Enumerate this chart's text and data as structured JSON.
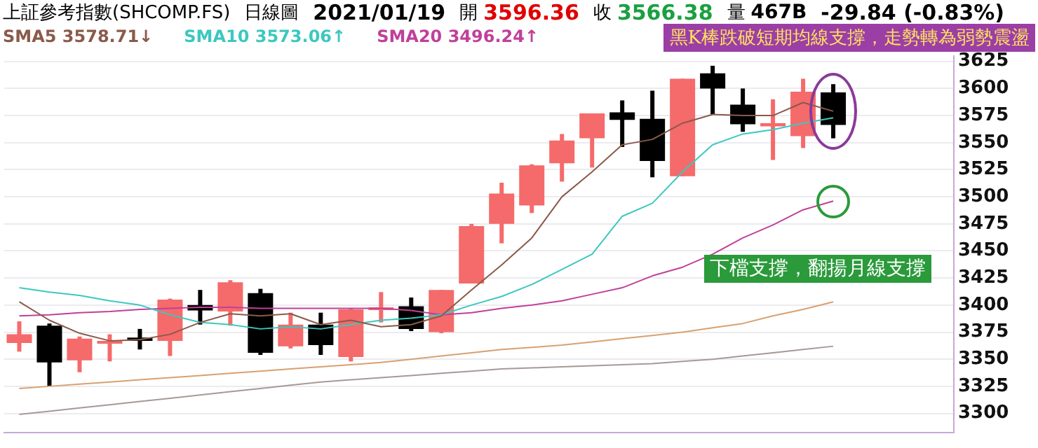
{
  "chart_data": {
    "type": "candlestick",
    "title": "上証參考指數(SHCOMP.FS)",
    "annotations": [
      "日線圖",
      "2021/01/19",
      "開",
      "3596.36",
      "收",
      "3566.38",
      "量",
      "467B",
      "-29.84 (-0.83%)",
      "黑K棒跌破短期均線支撐，走勢轉為弱勢震盪",
      "下檔支撐，翻揚月線支撐"
    ],
    "categories": [
      null,
      null,
      null,
      null,
      null,
      null,
      null,
      null,
      null,
      null,
      null,
      null,
      null,
      null,
      null,
      null,
      null,
      null,
      null,
      null,
      null,
      null,
      null,
      null,
      null,
      null,
      null,
      null
    ],
    "ohlc": [
      [
        3365,
        3385,
        3357,
        3373
      ],
      [
        3381,
        3383,
        3325,
        3347
      ],
      [
        3349,
        3371,
        3338,
        3369
      ],
      [
        3366,
        3373,
        3348,
        3367
      ],
      [
        3370,
        3378,
        3359,
        3367
      ],
      [
        3367,
        3406,
        3353,
        3405
      ],
      [
        3400,
        3414,
        3382,
        3395
      ],
      [
        3394,
        3423,
        3381,
        3421
      ],
      [
        3411,
        3415,
        3354,
        3356
      ],
      [
        3362,
        3393,
        3360,
        3382
      ],
      [
        3382,
        3393,
        3354,
        3363
      ],
      [
        3352,
        3397,
        3348,
        3396
      ],
      [
        3396,
        3412,
        3384,
        3398
      ],
      [
        3399,
        3407,
        3376,
        3378
      ],
      [
        3375,
        3414,
        3374,
        3414
      ],
      [
        3420,
        3475,
        3420,
        3473
      ],
      [
        3475,
        3513,
        3457,
        3503
      ],
      [
        3492,
        3530,
        3485,
        3529
      ],
      [
        3531,
        3558,
        3514,
        3552
      ],
      [
        3554,
        3577,
        3527,
        3577
      ],
      [
        3578,
        3589,
        3546,
        3571
      ],
      [
        3572,
        3598,
        3518,
        3533
      ],
      [
        3519,
        3609,
        3519,
        3609
      ],
      [
        3614,
        3621,
        3576,
        3600
      ],
      [
        3585,
        3600,
        3560,
        3567
      ],
      [
        3565,
        3590,
        3534,
        3568
      ],
      [
        3556,
        3609,
        3545,
        3597
      ],
      [
        3596.36,
        3604,
        3554,
        3566.38
      ]
    ],
    "colors": [
      "#f56a6a",
      "#000000",
      "#f56a6a",
      "#f56a6a",
      "#000000",
      "#f56a6a",
      "#000000",
      "#f56a6a",
      "#000000",
      "#f56a6a",
      "#000000",
      "#f56a6a",
      "#f56a6a",
      "#000000",
      "#f56a6a",
      "#f56a6a",
      "#f56a6a",
      "#f56a6a",
      "#f56a6a",
      "#f56a6a",
      "#000000",
      "#000000",
      "#f56a6a",
      "#000000",
      "#000000",
      "#f56a6a",
      "#f56a6a",
      "#000000"
    ],
    "series": [
      {
        "name": "SMA5 3578.71↓",
        "type": "line",
        "color": "#8a5a4a",
        "values": [
          3403,
          3386,
          3374,
          3367,
          3368,
          3373,
          3384,
          3392,
          3390,
          3392,
          3382,
          3386,
          3380,
          3382,
          3390,
          3414,
          3437,
          3462,
          3500,
          3523,
          3548,
          3553,
          3568,
          3576,
          3575,
          3575,
          3587,
          3579
        ]
      },
      {
        "name": "SMA10 3573.06↑",
        "type": "line",
        "color": "#3cc8c0",
        "values": [
          3416,
          3412,
          3409,
          3404,
          3400,
          3391,
          3384,
          3382,
          3378,
          3380,
          3378,
          3382,
          3386,
          3388,
          3391,
          3400,
          3408,
          3419,
          3433,
          3447,
          3482,
          3494,
          3523,
          3548,
          3558,
          3562,
          3568,
          3573
        ]
      },
      {
        "name": "SMA20 3496.24↑",
        "type": "line",
        "color": "#c0409a",
        "values": [
          3390,
          3391,
          3393,
          3394,
          3396,
          3397,
          3398,
          3398,
          3397,
          3397,
          3397,
          3397,
          3397,
          3395,
          3391,
          3393,
          3397,
          3400,
          3404,
          3410,
          3416,
          3427,
          3435,
          3447,
          3462,
          3474,
          3488,
          3496
        ]
      },
      {
        "type": "line",
        "color": "#d8a070",
        "values": [
          3323,
          3325,
          3327,
          3329,
          3331,
          3333,
          3335,
          3337,
          3339,
          3341,
          3343,
          3345,
          3347,
          3350,
          3353,
          3356,
          3359,
          3361,
          3363,
          3366,
          3369,
          3372,
          3375,
          3379,
          3383,
          3390,
          3396,
          3403
        ]
      },
      {
        "type": "line",
        "color": "#a89898",
        "values": [
          3299,
          3302,
          3305,
          3308,
          3311,
          3314,
          3317,
          3320,
          3323,
          3326,
          3329,
          3331,
          3333,
          3335,
          3337,
          3339,
          3341,
          3342,
          3343,
          3344,
          3345,
          3346,
          3348,
          3350,
          3353,
          3356,
          3359,
          3362
        ]
      }
    ],
    "ylim": [
      3282,
      3630
    ],
    "yticks": [
      3300,
      3325,
      3350,
      3375,
      3400,
      3425,
      3450,
      3475,
      3500,
      3525,
      3550,
      3575,
      3600,
      3625
    ],
    "grid": "y",
    "tick_labels": "y",
    "legend": "top left",
    "marker": "none",
    "line_style": "solid"
  }
}
